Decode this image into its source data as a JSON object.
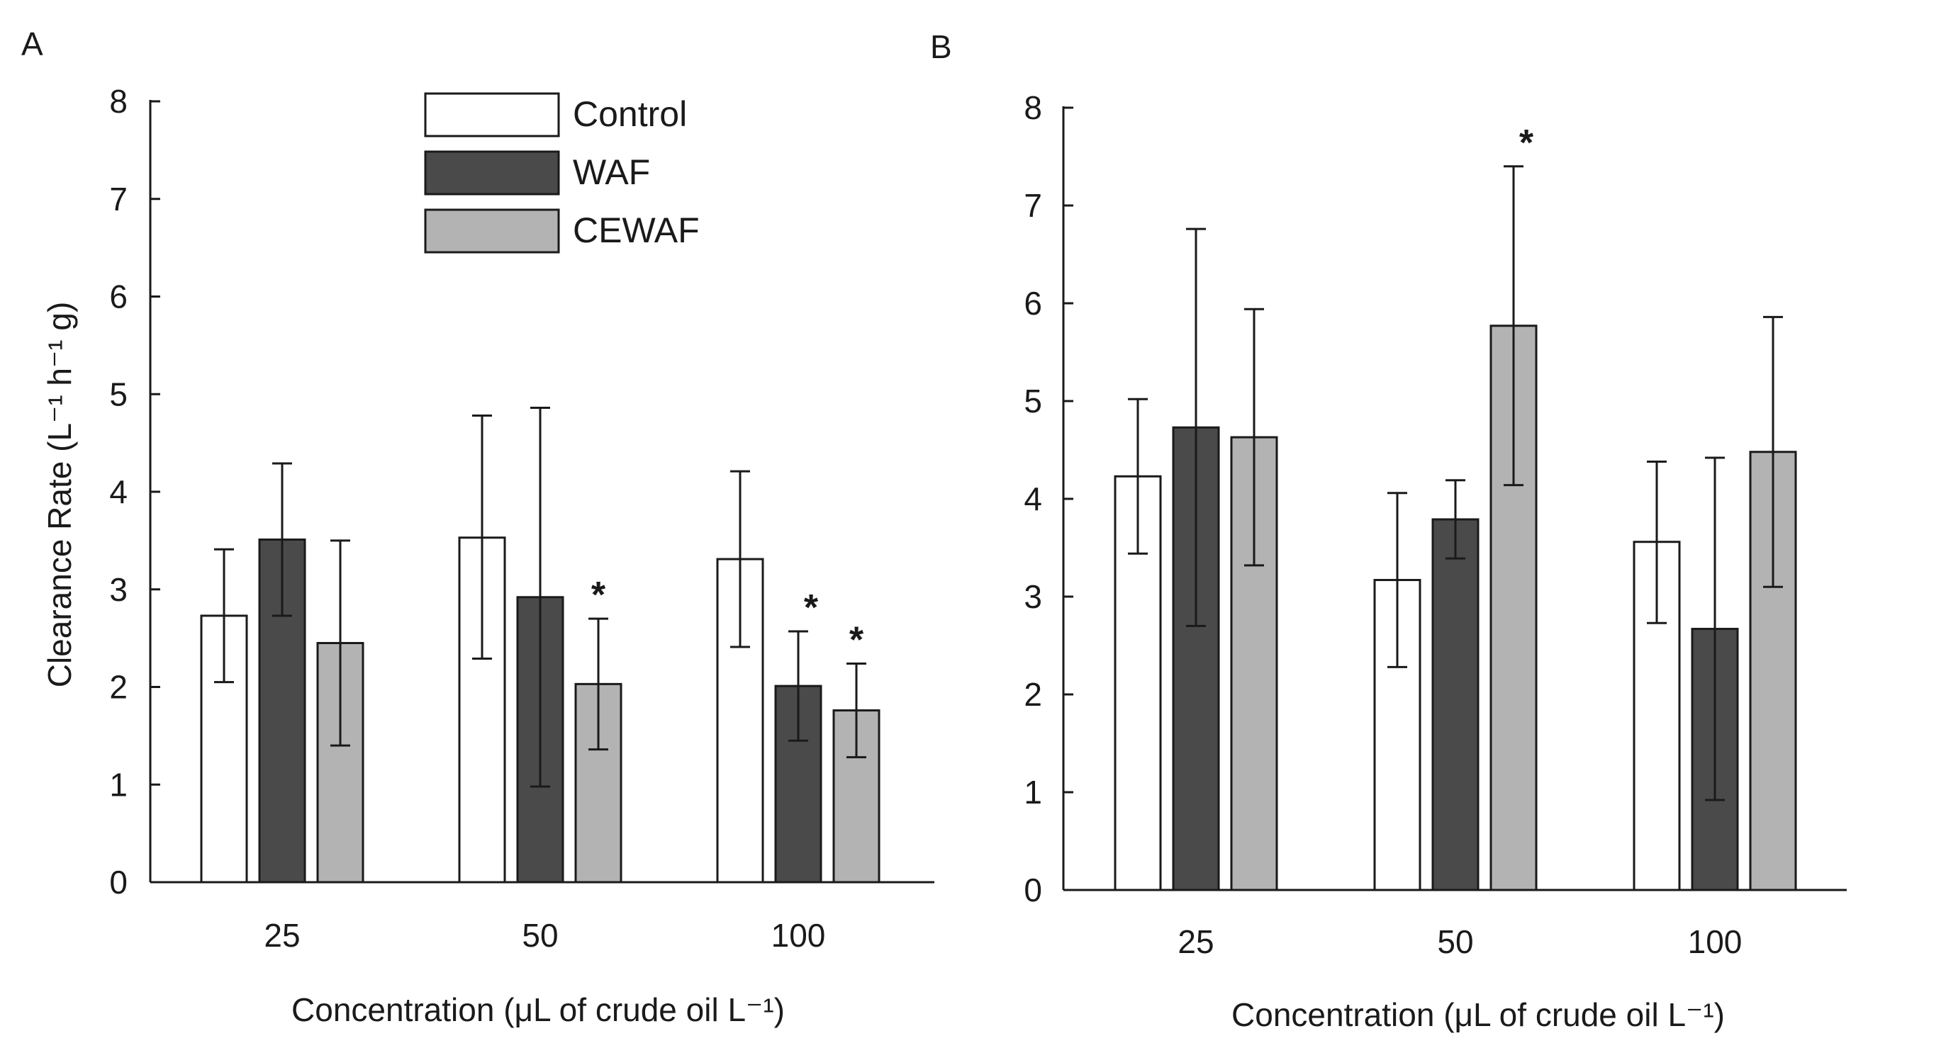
{
  "colors": {
    "Control": "#ffffff",
    "WAF": "#4a4a4a",
    "CEWAF": "#b3b3b3",
    "axis": "#1a1a1a"
  },
  "chart_data": [
    {
      "type": "bar",
      "panel_label": "A",
      "categories": [
        "25",
        "50",
        "100"
      ],
      "xlabel": "Concentration (μL of crude oil L⁻¹)",
      "ylabel": "Clearance Rate (L⁻¹ h⁻¹ g)",
      "ylim": [
        0,
        8
      ],
      "yticks": [
        "0",
        "1",
        "2",
        "3",
        "4",
        "5",
        "6",
        "7",
        "8"
      ],
      "legend": "top-center",
      "grid": false,
      "series": [
        {
          "name": "Control",
          "values": [
            2.73,
            3.53,
            3.31
          ],
          "err_low": [
            2.05,
            2.29,
            2.41
          ],
          "err_high": [
            3.41,
            4.78,
            4.21
          ],
          "sig": [
            "",
            "",
            ""
          ]
        },
        {
          "name": "WAF",
          "values": [
            3.51,
            2.92,
            2.01
          ],
          "err_low": [
            2.73,
            0.98,
            1.45
          ],
          "err_high": [
            4.29,
            4.86,
            2.57
          ],
          "sig": [
            "",
            "",
            "*"
          ]
        },
        {
          "name": "CEWAF",
          "values": [
            2.45,
            2.03,
            1.76
          ],
          "err_low": [
            1.4,
            1.36,
            1.28
          ],
          "err_high": [
            3.5,
            2.7,
            2.24
          ],
          "sig": [
            "",
            "*",
            "*"
          ]
        }
      ]
    },
    {
      "type": "bar",
      "panel_label": "B",
      "categories": [
        "25",
        "50",
        "100"
      ],
      "xlabel": "Concentration (μL of crude oil L⁻¹)",
      "ylabel": "",
      "ylim": [
        0,
        8
      ],
      "yticks": [
        "0",
        "1",
        "2",
        "3",
        "4",
        "5",
        "6",
        "7",
        "8"
      ],
      "grid": false,
      "series": [
        {
          "name": "Control",
          "values": [
            4.23,
            3.17,
            3.56
          ],
          "err_low": [
            3.44,
            2.28,
            2.73
          ],
          "err_high": [
            5.02,
            4.06,
            4.38
          ],
          "sig": [
            "",
            "",
            ""
          ]
        },
        {
          "name": "WAF",
          "values": [
            4.73,
            3.79,
            2.67
          ],
          "err_low": [
            2.7,
            3.39,
            0.92
          ],
          "err_high": [
            6.76,
            4.19,
            4.42
          ],
          "sig": [
            "",
            "",
            ""
          ]
        },
        {
          "name": "CEWAF",
          "values": [
            4.63,
            5.77,
            4.48
          ],
          "err_low": [
            3.32,
            4.14,
            3.1
          ],
          "err_high": [
            5.94,
            7.4,
            5.86
          ],
          "sig": [
            "",
            "*",
            ""
          ]
        }
      ]
    }
  ]
}
